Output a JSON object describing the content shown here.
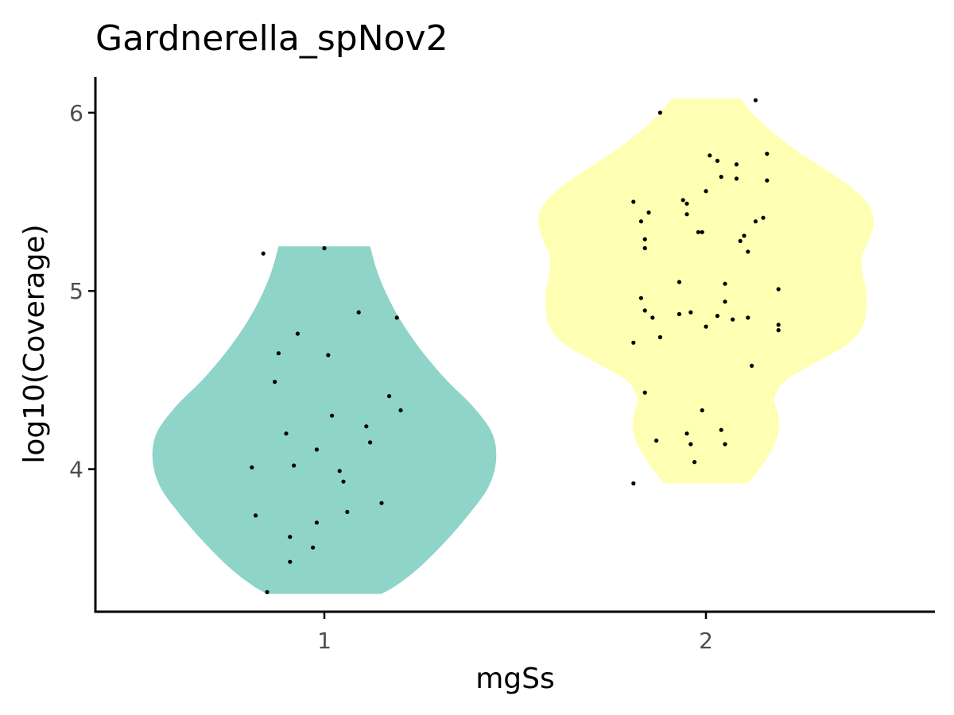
{
  "chart_data": {
    "type": "violin",
    "title": "Gardnerella_spNov2",
    "xlabel": "mgSs",
    "ylabel": "log10(Coverage)",
    "categories": [
      "1",
      "2"
    ],
    "y_ticks": [
      4,
      5,
      6
    ],
    "ylim": [
      3.2,
      6.2
    ],
    "xlim": [
      0.4,
      2.6
    ],
    "grid": false,
    "legend": "none",
    "colors": {
      "1": "#8fd4c8",
      "2": "#ffffb3",
      "points": "#000000"
    },
    "violins": [
      {
        "category": "1",
        "y_min": 3.3,
        "y_max": 5.25,
        "profile": [
          {
            "y": 3.3,
            "hw": 0.15
          },
          {
            "y": 3.35,
            "hw": 0.19
          },
          {
            "y": 3.45,
            "hw": 0.25
          },
          {
            "y": 3.6,
            "hw": 0.32
          },
          {
            "y": 3.75,
            "hw": 0.38
          },
          {
            "y": 3.9,
            "hw": 0.43
          },
          {
            "y": 4.05,
            "hw": 0.45
          },
          {
            "y": 4.2,
            "hw": 0.44
          },
          {
            "y": 4.35,
            "hw": 0.39
          },
          {
            "y": 4.5,
            "hw": 0.32
          },
          {
            "y": 4.65,
            "hw": 0.26
          },
          {
            "y": 4.8,
            "hw": 0.21
          },
          {
            "y": 4.95,
            "hw": 0.17
          },
          {
            "y": 5.1,
            "hw": 0.14
          },
          {
            "y": 5.25,
            "hw": 0.12
          }
        ],
        "points": [
          {
            "x": 0.84,
            "y": 5.21
          },
          {
            "x": 1.0,
            "y": 5.24
          },
          {
            "x": 1.09,
            "y": 4.88
          },
          {
            "x": 1.19,
            "y": 4.85
          },
          {
            "x": 0.93,
            "y": 4.76
          },
          {
            "x": 0.88,
            "y": 4.65
          },
          {
            "x": 1.01,
            "y": 4.64
          },
          {
            "x": 0.87,
            "y": 4.49
          },
          {
            "x": 1.17,
            "y": 4.41
          },
          {
            "x": 1.2,
            "y": 4.33
          },
          {
            "x": 1.02,
            "y": 4.3
          },
          {
            "x": 1.11,
            "y": 4.24
          },
          {
            "x": 0.9,
            "y": 4.2
          },
          {
            "x": 1.12,
            "y": 4.15
          },
          {
            "x": 0.98,
            "y": 4.11
          },
          {
            "x": 0.92,
            "y": 4.02
          },
          {
            "x": 0.81,
            "y": 4.01
          },
          {
            "x": 1.04,
            "y": 3.99
          },
          {
            "x": 1.05,
            "y": 3.93
          },
          {
            "x": 1.15,
            "y": 3.81
          },
          {
            "x": 1.06,
            "y": 3.76
          },
          {
            "x": 0.82,
            "y": 3.74
          },
          {
            "x": 0.98,
            "y": 3.7
          },
          {
            "x": 0.91,
            "y": 3.62
          },
          {
            "x": 0.97,
            "y": 3.56
          },
          {
            "x": 0.91,
            "y": 3.48
          },
          {
            "x": 0.85,
            "y": 3.31
          }
        ]
      },
      {
        "category": "2",
        "y_min": 3.92,
        "y_max": 6.08,
        "profile": [
          {
            "y": 3.92,
            "hw": 0.11
          },
          {
            "y": 4.0,
            "hw": 0.14
          },
          {
            "y": 4.1,
            "hw": 0.17
          },
          {
            "y": 4.2,
            "hw": 0.19
          },
          {
            "y": 4.3,
            "hw": 0.19
          },
          {
            "y": 4.4,
            "hw": 0.18
          },
          {
            "y": 4.5,
            "hw": 0.21
          },
          {
            "y": 4.6,
            "hw": 0.29
          },
          {
            "y": 4.7,
            "hw": 0.37
          },
          {
            "y": 4.8,
            "hw": 0.41
          },
          {
            "y": 4.9,
            "hw": 0.42
          },
          {
            "y": 5.0,
            "hw": 0.42
          },
          {
            "y": 5.1,
            "hw": 0.41
          },
          {
            "y": 5.2,
            "hw": 0.41
          },
          {
            "y": 5.3,
            "hw": 0.43
          },
          {
            "y": 5.4,
            "hw": 0.44
          },
          {
            "y": 5.5,
            "hw": 0.42
          },
          {
            "y": 5.6,
            "hw": 0.37
          },
          {
            "y": 5.7,
            "hw": 0.3
          },
          {
            "y": 5.8,
            "hw": 0.23
          },
          {
            "y": 5.9,
            "hw": 0.17
          },
          {
            "y": 6.0,
            "hw": 0.12
          },
          {
            "y": 6.08,
            "hw": 0.09
          }
        ],
        "points": [
          {
            "x": 2.13,
            "y": 6.07
          },
          {
            "x": 1.88,
            "y": 6.0
          },
          {
            "x": 2.16,
            "y": 5.77
          },
          {
            "x": 2.01,
            "y": 5.76
          },
          {
            "x": 2.03,
            "y": 5.73
          },
          {
            "x": 2.08,
            "y": 5.71
          },
          {
            "x": 2.04,
            "y": 5.64
          },
          {
            "x": 2.08,
            "y": 5.63
          },
          {
            "x": 2.16,
            "y": 5.62
          },
          {
            "x": 2.0,
            "y": 5.56
          },
          {
            "x": 1.81,
            "y": 5.5
          },
          {
            "x": 1.94,
            "y": 5.51
          },
          {
            "x": 1.95,
            "y": 5.49
          },
          {
            "x": 1.85,
            "y": 5.44
          },
          {
            "x": 1.95,
            "y": 5.43
          },
          {
            "x": 2.15,
            "y": 5.41
          },
          {
            "x": 2.13,
            "y": 5.39
          },
          {
            "x": 1.83,
            "y": 5.39
          },
          {
            "x": 1.98,
            "y": 5.33
          },
          {
            "x": 1.99,
            "y": 5.33
          },
          {
            "x": 2.1,
            "y": 5.31
          },
          {
            "x": 2.09,
            "y": 5.28
          },
          {
            "x": 1.84,
            "y": 5.29
          },
          {
            "x": 1.84,
            "y": 5.24
          },
          {
            "x": 2.11,
            "y": 5.22
          },
          {
            "x": 1.93,
            "y": 5.05
          },
          {
            "x": 2.05,
            "y": 5.04
          },
          {
            "x": 2.19,
            "y": 5.01
          },
          {
            "x": 1.83,
            "y": 4.96
          },
          {
            "x": 2.05,
            "y": 4.94
          },
          {
            "x": 1.84,
            "y": 4.89
          },
          {
            "x": 1.96,
            "y": 4.88
          },
          {
            "x": 1.93,
            "y": 4.87
          },
          {
            "x": 2.03,
            "y": 4.86
          },
          {
            "x": 2.11,
            "y": 4.85
          },
          {
            "x": 1.86,
            "y": 4.85
          },
          {
            "x": 2.07,
            "y": 4.84
          },
          {
            "x": 2.19,
            "y": 4.81
          },
          {
            "x": 2.0,
            "y": 4.8
          },
          {
            "x": 2.19,
            "y": 4.78
          },
          {
            "x": 1.88,
            "y": 4.74
          },
          {
            "x": 1.81,
            "y": 4.71
          },
          {
            "x": 2.12,
            "y": 4.58
          },
          {
            "x": 1.84,
            "y": 4.43
          },
          {
            "x": 1.99,
            "y": 4.33
          },
          {
            "x": 2.04,
            "y": 4.22
          },
          {
            "x": 1.95,
            "y": 4.2
          },
          {
            "x": 1.87,
            "y": 4.16
          },
          {
            "x": 1.96,
            "y": 4.14
          },
          {
            "x": 2.05,
            "y": 4.14
          },
          {
            "x": 1.97,
            "y": 4.04
          },
          {
            "x": 1.81,
            "y": 3.92
          }
        ]
      }
    ]
  }
}
